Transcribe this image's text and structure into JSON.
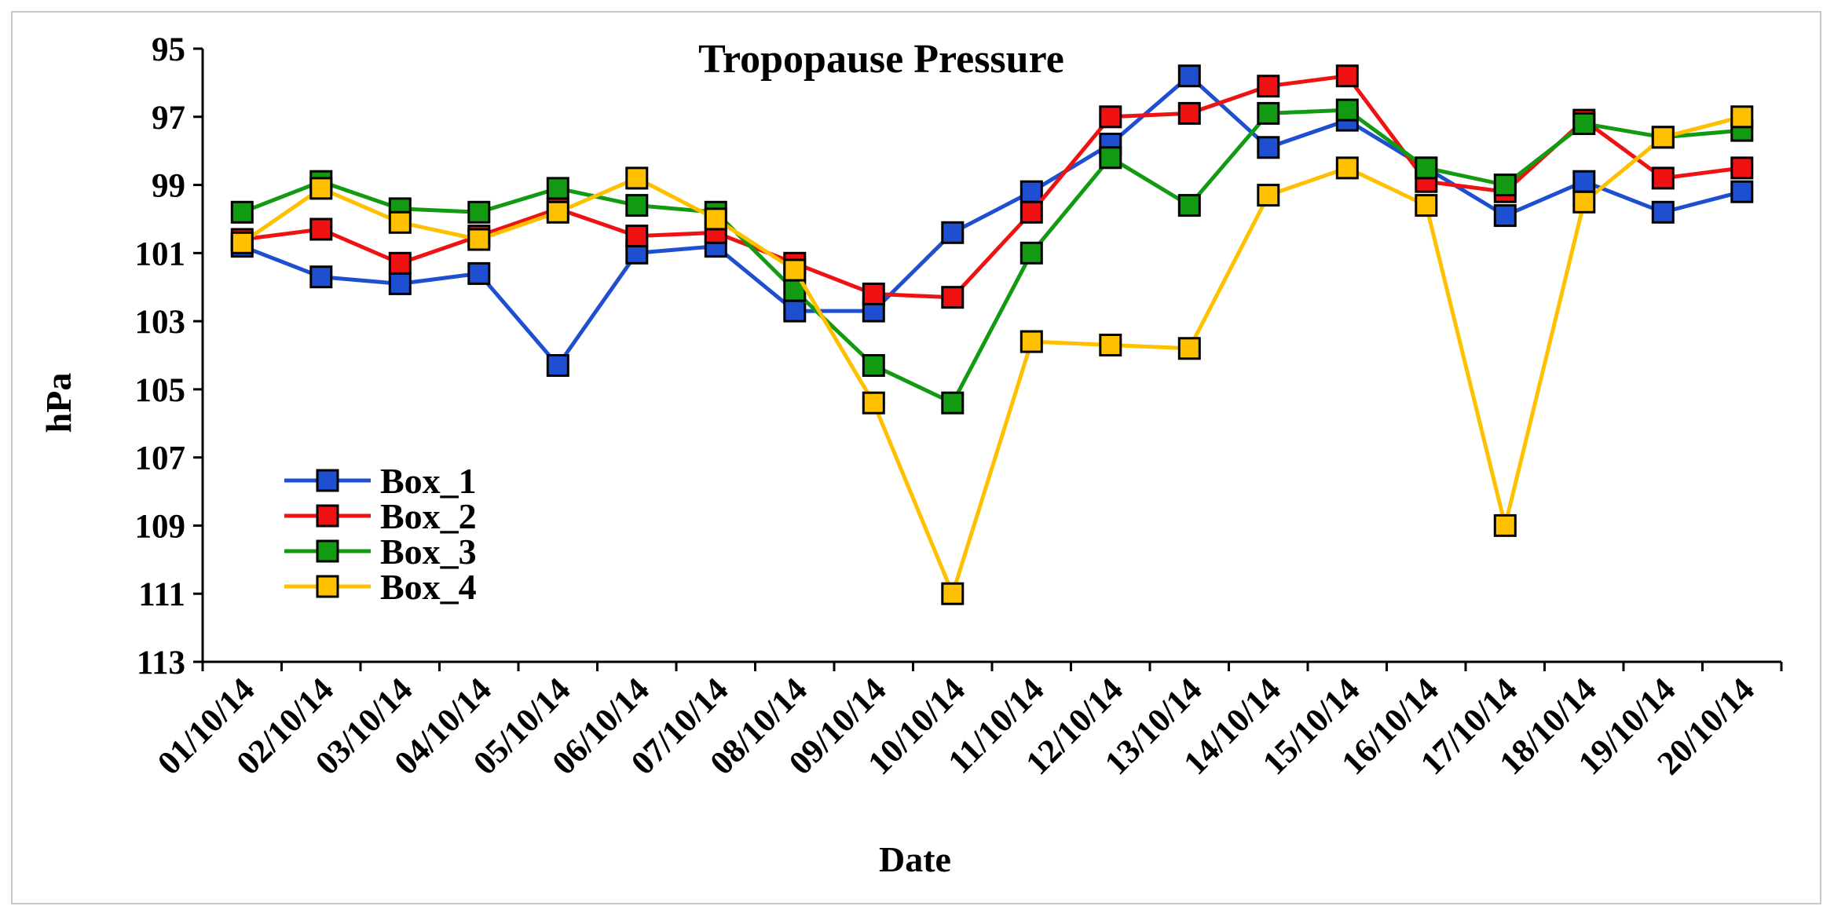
{
  "chart_data": {
    "type": "line",
    "title": "Tropopause Pressure",
    "xlabel": "Date",
    "ylabel": "hPa",
    "ylim": [
      95,
      113
    ],
    "y_reversed": true,
    "y_ticks": [
      "95",
      "97",
      "99",
      "101",
      "103",
      "105",
      "107",
      "109",
      "111",
      "113"
    ],
    "categories": [
      "01/10/14",
      "02/10/14",
      "03/10/14",
      "04/10/14",
      "05/10/14",
      "06/10/14",
      "07/10/14",
      "08/10/14",
      "09/10/14",
      "10/10/14",
      "11/10/14",
      "12/10/14",
      "13/10/14",
      "14/10/14",
      "15/10/14",
      "16/10/14",
      "17/10/14",
      "18/10/14",
      "19/10/14",
      "20/10/14"
    ],
    "legend_position": "lower-left",
    "series": [
      {
        "name": "Box_1",
        "color": "#1f4fd1",
        "values": [
          100.8,
          101.7,
          101.9,
          101.6,
          104.3,
          101.0,
          100.8,
          102.7,
          102.7,
          100.4,
          99.2,
          97.8,
          95.8,
          97.9,
          97.1,
          98.5,
          99.9,
          98.9,
          99.8,
          99.2
        ]
      },
      {
        "name": "Box_2",
        "color": "#f01212",
        "values": [
          100.6,
          100.3,
          101.3,
          100.5,
          99.7,
          100.5,
          100.4,
          101.3,
          102.2,
          102.3,
          99.8,
          97.0,
          96.9,
          96.1,
          95.8,
          98.9,
          99.2,
          97.1,
          98.8,
          98.5
        ]
      },
      {
        "name": "Box_3",
        "color": "#139a13",
        "values": [
          99.8,
          98.9,
          99.7,
          99.8,
          99.1,
          99.6,
          99.8,
          102.1,
          104.3,
          105.4,
          101.0,
          98.2,
          99.6,
          96.9,
          96.8,
          98.5,
          99.0,
          97.2,
          97.6,
          97.4
        ]
      },
      {
        "name": "Box_4",
        "color": "#ffc000",
        "values": [
          100.7,
          99.1,
          100.1,
          100.6,
          99.8,
          98.8,
          100.0,
          101.5,
          105.4,
          111.0,
          103.6,
          103.7,
          103.8,
          99.3,
          98.5,
          99.6,
          109.0,
          99.5,
          97.6,
          97.0
        ]
      }
    ]
  }
}
